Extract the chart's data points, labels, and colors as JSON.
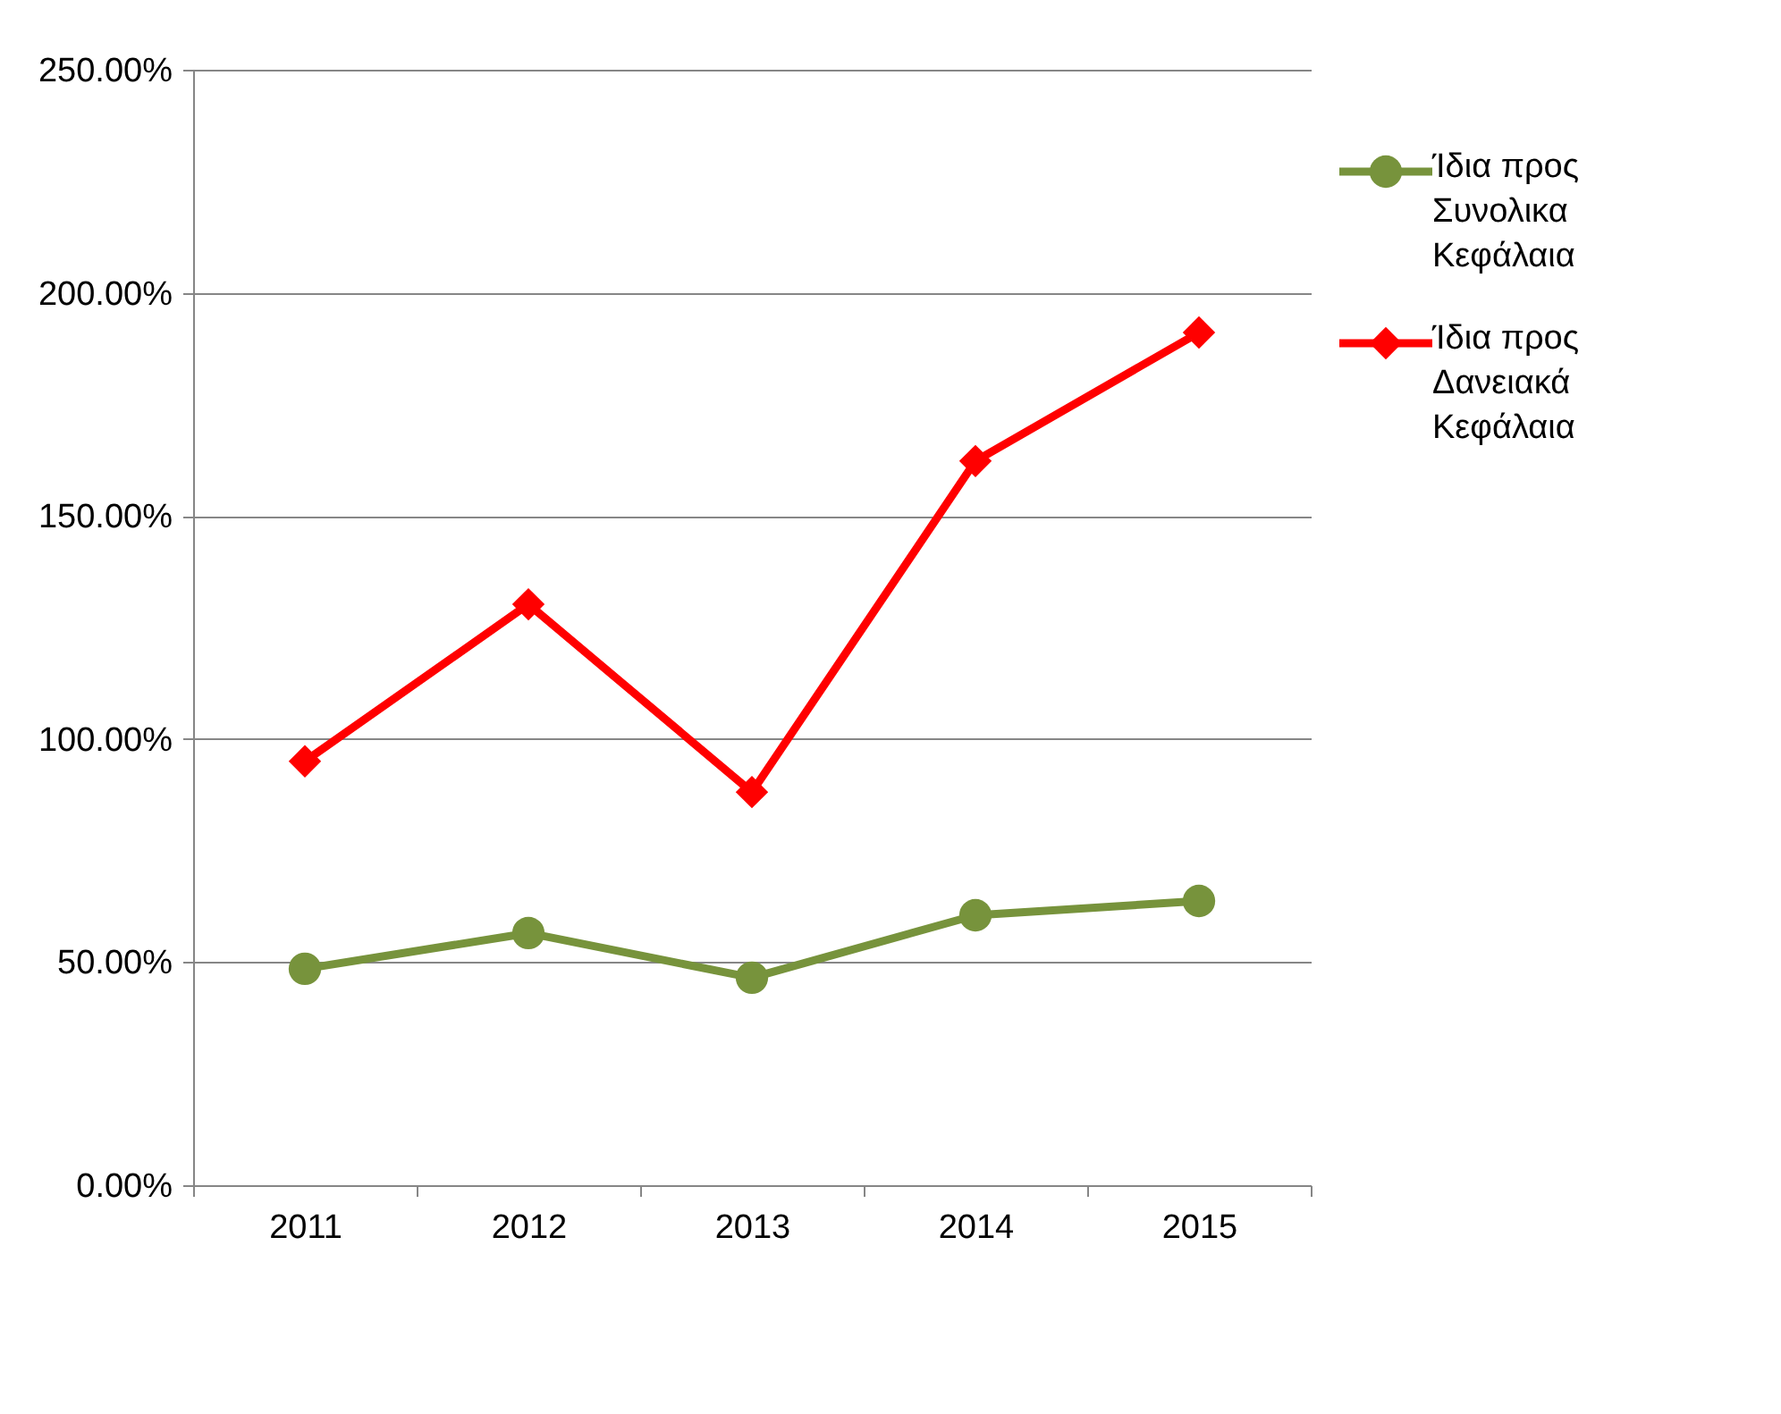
{
  "chart_data": {
    "type": "line",
    "categories": [
      "2011",
      "2012",
      "2013",
      "2014",
      "2015"
    ],
    "series": [
      {
        "name": "Ίδια προς Συνολικα Κεφάλαια",
        "color": "#77933c",
        "marker": "circle",
        "values": [
          48.5,
          56.5,
          46.5,
          60.5,
          63.7
        ]
      },
      {
        "name": "Ίδια προς Δανειακά Κεφάλαια",
        "color": "#ff0000",
        "marker": "diamond",
        "values": [
          95,
          130.2,
          88.1,
          162.3,
          191.1
        ]
      }
    ],
    "ylim": [
      0,
      250
    ],
    "yticks": [
      {
        "value": 0,
        "label": "0.00%"
      },
      {
        "value": 50,
        "label": "50.00%"
      },
      {
        "value": 100,
        "label": "100.00%"
      },
      {
        "value": 150,
        "label": "150.00%"
      },
      {
        "value": 200,
        "label": "200.00%"
      },
      {
        "value": 250,
        "label": "250.00%"
      }
    ],
    "grid": "y",
    "legend": "right",
    "line_style": "solid"
  }
}
